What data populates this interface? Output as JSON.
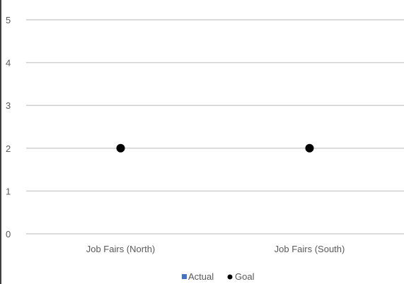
{
  "chart_data": {
    "type": "bar",
    "categories": [
      "Job Fairs (North)",
      "Job Fairs (South)"
    ],
    "series": [
      {
        "name": "Actual",
        "type": "bar",
        "values": [
          0,
          0
        ],
        "color": "#4472C4"
      },
      {
        "name": "Goal",
        "type": "scatter",
        "values": [
          2,
          2
        ],
        "color": "#000000"
      }
    ],
    "yticks": [
      0,
      1,
      2,
      3,
      4,
      5
    ],
    "ylim": [
      0,
      5
    ],
    "grid": true,
    "legend": "bottom",
    "gridline_color": "#D0D0D0"
  }
}
